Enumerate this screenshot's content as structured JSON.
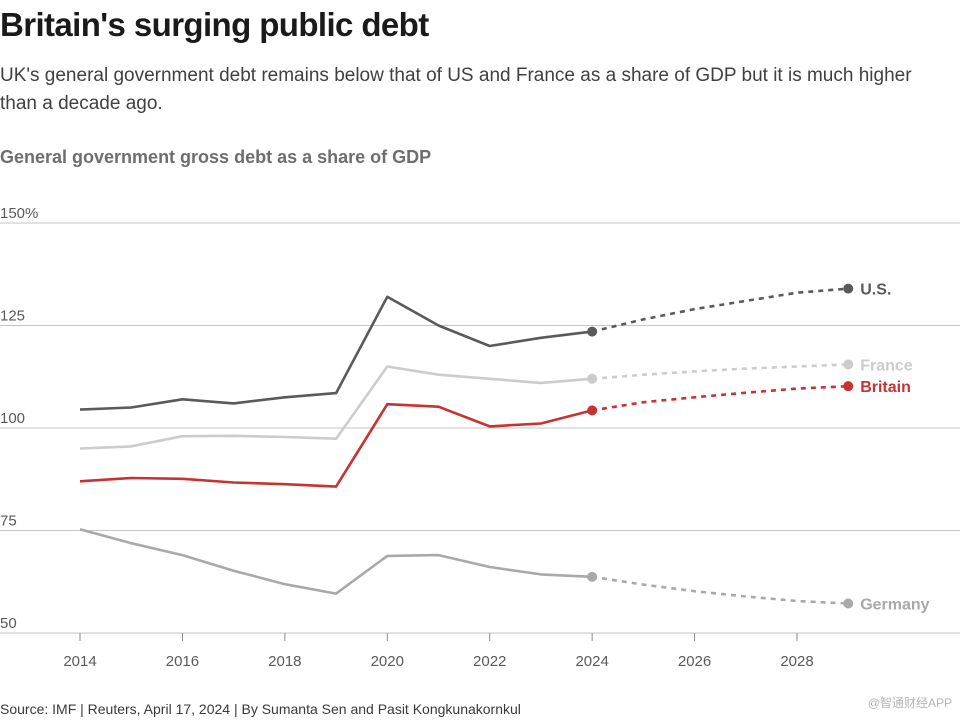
{
  "header": {
    "title": "Britain's surging public debt",
    "subtitle": "UK's general government debt remains below that of US and France as a share of GDP but it is much higher than a decade ago."
  },
  "footer": {
    "source": "Source: IMF | Reuters, April 17, 2024 | By Sumanta Sen and Pasit Kongkunakornkul",
    "watermark": "@智通财经APP"
  },
  "colors": {
    "us": "#5a5a5a",
    "france": "#cccccc",
    "britain": "#c93232",
    "germany": "#a9a9a9",
    "grid": "#c6c6c6",
    "axis_text": "#5a5a5a"
  },
  "chart_data": {
    "type": "line",
    "title": "General government gross debt as a share of GDP",
    "xlabel": "",
    "ylabel": "",
    "xlim": [
      2013.5,
      2030.5
    ],
    "ylim": [
      50,
      150
    ],
    "yticks": [
      50,
      75,
      100,
      125,
      150
    ],
    "ytick_labels": [
      "50",
      "75",
      "100",
      "125",
      "150%"
    ],
    "xticks": [
      2014,
      2016,
      2018,
      2020,
      2022,
      2024,
      2026,
      2028
    ],
    "xtick_labels": [
      "2014",
      "2016",
      "2018",
      "2020",
      "2022",
      "2024",
      "2026",
      "2028"
    ],
    "grid": true,
    "actual_through": 2024,
    "series": [
      {
        "name": "U.S.",
        "key": "us",
        "x": [
          2014,
          2015,
          2016,
          2017,
          2018,
          2019,
          2020,
          2021,
          2022,
          2023,
          2024,
          2025,
          2026,
          2027,
          2028,
          2029
        ],
        "values": [
          104.5,
          105.0,
          107.0,
          106.0,
          107.5,
          108.5,
          132.0,
          125.0,
          120.0,
          122.0,
          123.5,
          126.5,
          129.0,
          131.0,
          133.0,
          134.0
        ]
      },
      {
        "name": "France",
        "key": "france",
        "x": [
          2014,
          2015,
          2016,
          2017,
          2018,
          2019,
          2020,
          2021,
          2022,
          2023,
          2024,
          2025,
          2026,
          2027,
          2028,
          2029
        ],
        "values": [
          95.0,
          95.5,
          98.0,
          98.1,
          97.8,
          97.4,
          115.0,
          113.0,
          112.0,
          111.0,
          112.0,
          113.0,
          113.8,
          114.5,
          115.0,
          115.5
        ]
      },
      {
        "name": "Britain",
        "key": "britain",
        "x": [
          2014,
          2015,
          2016,
          2017,
          2018,
          2019,
          2020,
          2021,
          2022,
          2023,
          2024,
          2025,
          2026,
          2027,
          2028,
          2029
        ],
        "values": [
          87.0,
          87.8,
          87.6,
          86.7,
          86.3,
          85.7,
          105.8,
          105.2,
          100.4,
          101.1,
          104.3,
          106.3,
          107.5,
          108.6,
          109.6,
          110.2
        ]
      },
      {
        "name": "Germany",
        "key": "germany",
        "x": [
          2014,
          2015,
          2016,
          2017,
          2018,
          2019,
          2020,
          2021,
          2022,
          2023,
          2024,
          2025,
          2026,
          2027,
          2028,
          2029
        ],
        "values": [
          75.3,
          71.9,
          69.0,
          65.2,
          61.9,
          59.6,
          68.8,
          69.0,
          66.1,
          64.3,
          63.7,
          61.8,
          60.2,
          58.9,
          57.8,
          57.2
        ]
      }
    ]
  }
}
